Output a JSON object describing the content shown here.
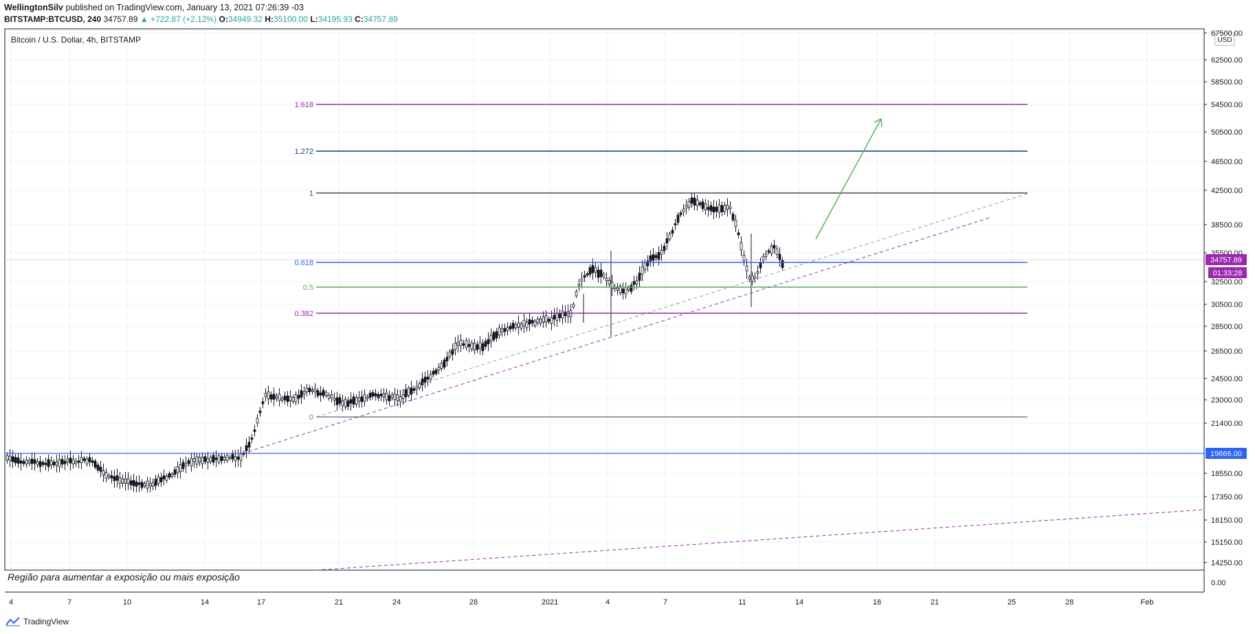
{
  "header": {
    "author": "WellingtonSilv",
    "published": "published on TradingView.com, January 13, 2021 07:26:39 -03",
    "symbol": "BITSTAMP:BTCUSD, 240",
    "last": "34757.89",
    "change": "▲ +722.87 (+2.12%)",
    "open_label": "O:",
    "open": "34949.32",
    "high_label": "H:",
    "high": "35100.00",
    "low_label": "L:",
    "low": "34195.93",
    "close_label": "C:",
    "close": "34757.89"
  },
  "chart": {
    "pane_title": "Bitcoin / U.S. Dollar, 4h, BITSTAMP",
    "currency": "USD",
    "price_ticks": [
      "67500.00",
      "62500.00",
      "58500.00",
      "54500.00",
      "50500.00",
      "46500.00",
      "42500.00",
      "38500.00",
      "35500.00",
      "32500.00",
      "30500.00",
      "28500.00",
      "26500.00",
      "24500.00",
      "23000.00",
      "21400.00",
      "18550.00",
      "17350.00",
      "16150.00",
      "15150.00",
      "14250.00"
    ],
    "time_ticks": [
      "4",
      "7",
      "10",
      "14",
      "17",
      "21",
      "24",
      "28",
      "2021",
      "4",
      "7",
      "11",
      "14",
      "18",
      "21",
      "25",
      "28",
      "Feb"
    ],
    "last_price_tag": "34757.89",
    "countdown_tag": "01:33:28",
    "horizontal_level_tag": "19666.00",
    "fib_levels": [
      {
        "label": "1.618",
        "color": "#9c27b0"
      },
      {
        "label": "1.272",
        "color": "#0d3a7a"
      },
      {
        "label": "1",
        "color": "#4a4a4a"
      },
      {
        "label": "0.618",
        "color": "#2962ff"
      },
      {
        "label": "0.5",
        "color": "#4caf50"
      },
      {
        "label": "0.382",
        "color": "#9c27b0"
      },
      {
        "label": "0",
        "color": "#787b86"
      }
    ],
    "annotation": "Região para aumentar a exposição ou mais exposição"
  },
  "indicator_pane": {
    "tick": "0.00"
  },
  "footer": {
    "brand": "TradingView"
  },
  "colors": {
    "up": "#26a69a",
    "last_tag": "#9c27b0",
    "level_tag": "#2962ff",
    "arrow": "#4caf50"
  }
}
